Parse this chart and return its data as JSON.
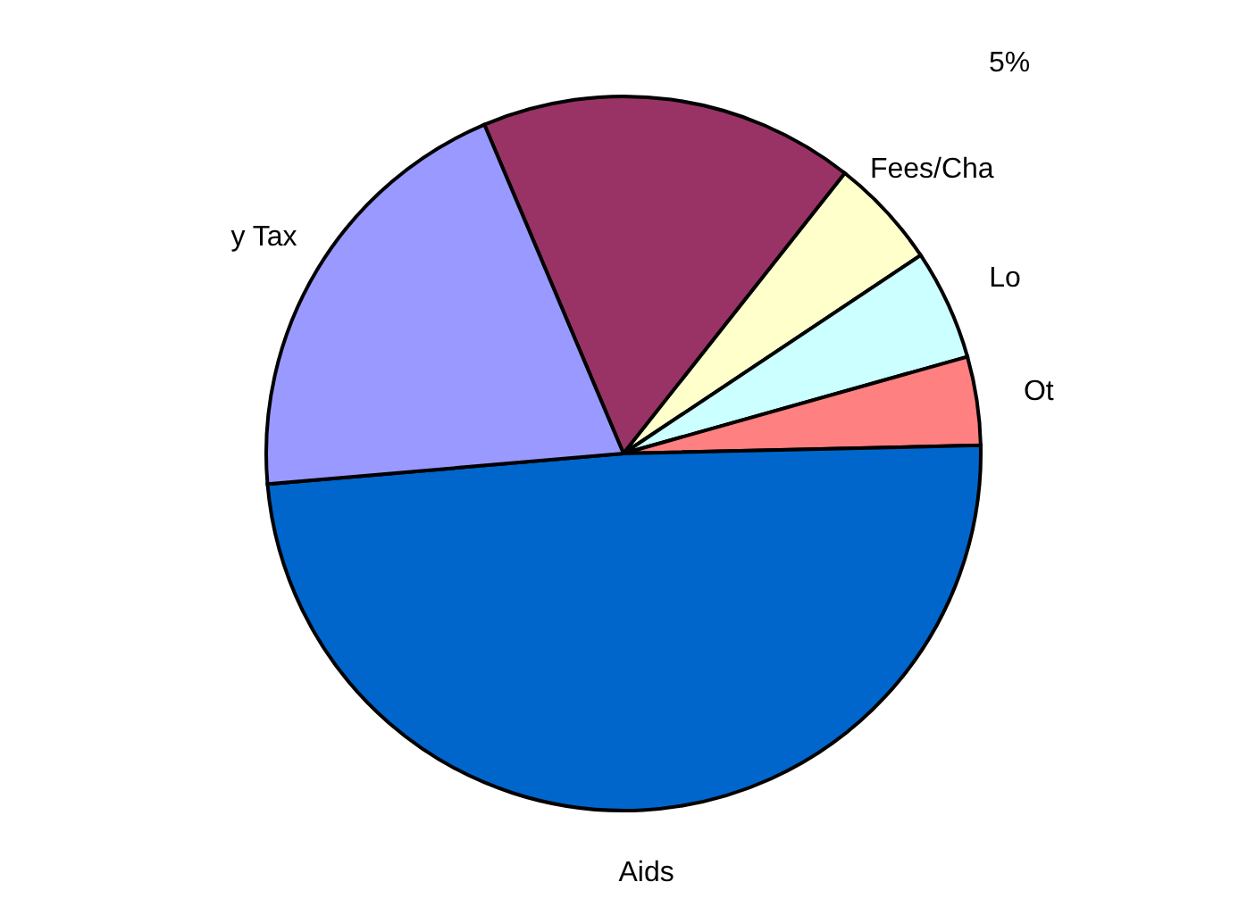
{
  "chart_data": {
    "type": "pie",
    "categories": [
      null,
      "Fees/Cha",
      "Lo",
      "Ot",
      "Aids",
      "y Tax"
    ],
    "values": [
      17,
      5,
      5,
      4,
      49,
      20
    ],
    "colors": [
      "#993366",
      "#ffffcc",
      "#ccffff",
      "#ff8080",
      "#0066cc",
      "#9999ff"
    ],
    "annotations": [
      "5%"
    ],
    "legend": false
  }
}
